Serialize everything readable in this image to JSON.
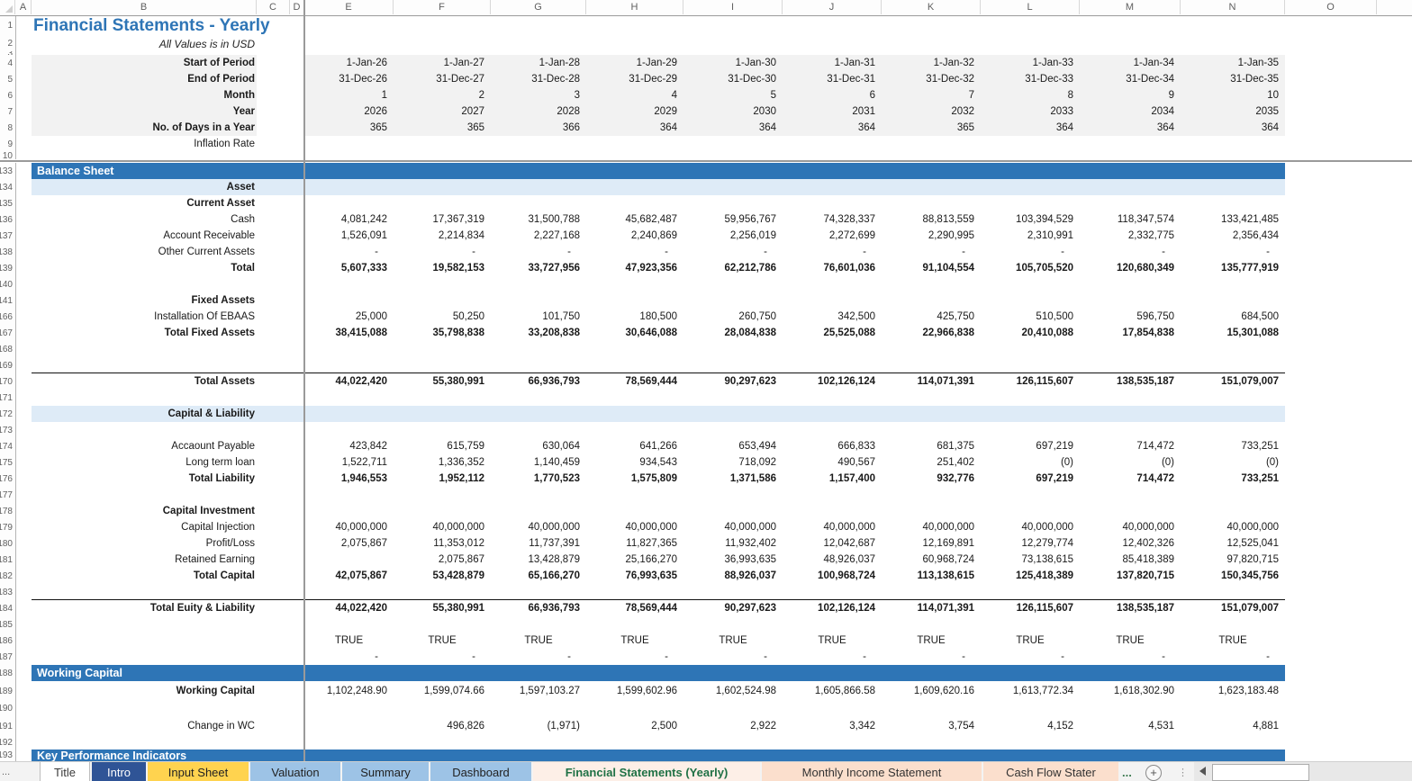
{
  "sheet": {
    "title": "Financial Statements - Yearly",
    "subtitle": "All Values is in USD",
    "column_letters": [
      "A",
      "B",
      "C",
      "D",
      "E",
      "F",
      "G",
      "H",
      "I",
      "J",
      "K",
      "L",
      "M",
      "N",
      "O"
    ],
    "top_rows": [
      {
        "n": "1",
        "type": "title"
      },
      {
        "n": "2",
        "type": "subtitle"
      },
      {
        "n": "3",
        "type": "sliver"
      },
      {
        "n": "4",
        "type": "data",
        "label": "Start of Period",
        "bold": true,
        "fill": true,
        "v": [
          "1-Jan-26",
          "1-Jan-27",
          "1-Jan-28",
          "1-Jan-29",
          "1-Jan-30",
          "1-Jan-31",
          "1-Jan-32",
          "1-Jan-33",
          "1-Jan-34",
          "1-Jan-35"
        ]
      },
      {
        "n": "5",
        "type": "data",
        "label": "End of Period",
        "bold": true,
        "fill": true,
        "v": [
          "31-Dec-26",
          "31-Dec-27",
          "31-Dec-28",
          "31-Dec-29",
          "31-Dec-30",
          "31-Dec-31",
          "31-Dec-32",
          "31-Dec-33",
          "31-Dec-34",
          "31-Dec-35"
        ]
      },
      {
        "n": "6",
        "type": "data",
        "label": "Month",
        "bold": true,
        "fill": true,
        "v": [
          "1",
          "2",
          "3",
          "4",
          "5",
          "6",
          "7",
          "8",
          "9",
          "10"
        ]
      },
      {
        "n": "7",
        "type": "data",
        "label": "Year",
        "bold": true,
        "fill": true,
        "v": [
          "2026",
          "2027",
          "2028",
          "2029",
          "2030",
          "2031",
          "2032",
          "2033",
          "2034",
          "2035"
        ]
      },
      {
        "n": "8",
        "type": "data",
        "label": "No. of Days in a Year",
        "bold": true,
        "fill": true,
        "v": [
          "365",
          "365",
          "366",
          "364",
          "364",
          "364",
          "365",
          "364",
          "364",
          "364"
        ]
      },
      {
        "n": "9",
        "type": "data",
        "label": "Inflation Rate",
        "bold": false,
        "fill": false,
        "v": [
          "",
          "",
          "",
          "",
          "",
          "",
          "",
          "",
          "",
          ""
        ]
      },
      {
        "n": "10",
        "type": "sliver"
      }
    ],
    "body_rows": [
      {
        "n": "133",
        "type": "bar",
        "label": "Balance Sheet"
      },
      {
        "n": "134",
        "type": "sub",
        "label": "Asset"
      },
      {
        "n": "135",
        "type": "lbl",
        "label": "Current Asset"
      },
      {
        "n": "136",
        "type": "data",
        "label": "Cash",
        "v": [
          "4,081,242",
          "17,367,319",
          "31,500,788",
          "45,682,487",
          "59,956,767",
          "74,328,337",
          "88,813,559",
          "103,394,529",
          "118,347,574",
          "133,421,485"
        ]
      },
      {
        "n": "137",
        "type": "data",
        "label": "Account Receivable",
        "v": [
          "1,526,091",
          "2,214,834",
          "2,227,168",
          "2,240,869",
          "2,256,019",
          "2,272,699",
          "2,290,995",
          "2,310,991",
          "2,332,775",
          "2,356,434"
        ]
      },
      {
        "n": "138",
        "type": "data",
        "label": "Other Current Assets",
        "v": [
          "-",
          "-",
          "-",
          "-",
          "-",
          "-",
          "-",
          "-",
          "-",
          "-"
        ]
      },
      {
        "n": "139",
        "type": "data",
        "label": "Total",
        "bold": true,
        "vbold": true,
        "v": [
          "5,607,333",
          "19,582,153",
          "33,727,956",
          "47,923,356",
          "62,212,786",
          "76,601,036",
          "91,104,554",
          "105,705,520",
          "120,680,349",
          "135,777,919"
        ]
      },
      {
        "n": "140",
        "type": "blank"
      },
      {
        "n": "141",
        "type": "lbl",
        "label": "Fixed Assets"
      },
      {
        "n": "166",
        "type": "data",
        "label": "Installation Of EBAAS",
        "v": [
          "25,000",
          "50,250",
          "101,750",
          "180,500",
          "260,750",
          "342,500",
          "425,750",
          "510,500",
          "596,750",
          "684,500"
        ]
      },
      {
        "n": "167",
        "type": "data",
        "label": "Total Fixed Assets",
        "bold": true,
        "vbold": true,
        "v": [
          "38,415,088",
          "35,798,838",
          "33,208,838",
          "30,646,088",
          "28,084,838",
          "25,525,088",
          "22,966,838",
          "20,410,088",
          "17,854,838",
          "15,301,088"
        ]
      },
      {
        "n": "168",
        "type": "blank"
      },
      {
        "n": "169",
        "type": "blank"
      },
      {
        "n": "170",
        "type": "data",
        "label": "Total Assets",
        "bold": true,
        "vbold": true,
        "line": true,
        "v": [
          "44,022,420",
          "55,380,991",
          "66,936,793",
          "78,569,444",
          "90,297,623",
          "102,126,124",
          "114,071,391",
          "126,115,607",
          "138,535,187",
          "151,079,007"
        ]
      },
      {
        "n": "171",
        "type": "blank"
      },
      {
        "n": "172",
        "type": "sub",
        "label": "Capital & Liability"
      },
      {
        "n": "173",
        "type": "blank"
      },
      {
        "n": "174",
        "type": "data",
        "label": "Accaount Payable",
        "v": [
          "423,842",
          "615,759",
          "630,064",
          "641,266",
          "653,494",
          "666,833",
          "681,375",
          "697,219",
          "714,472",
          "733,251"
        ]
      },
      {
        "n": "175",
        "type": "data",
        "label": "Long term loan",
        "v": [
          "1,522,711",
          "1,336,352",
          "1,140,459",
          "934,543",
          "718,092",
          "490,567",
          "251,402",
          "(0)",
          "(0)",
          "(0)"
        ]
      },
      {
        "n": "176",
        "type": "data",
        "label": "Total Liability",
        "bold": true,
        "vbold": true,
        "v": [
          "1,946,553",
          "1,952,112",
          "1,770,523",
          "1,575,809",
          "1,371,586",
          "1,157,400",
          "932,776",
          "697,219",
          "714,472",
          "733,251"
        ]
      },
      {
        "n": "177",
        "type": "blank"
      },
      {
        "n": "178",
        "type": "lbl",
        "label": "Capital Investment"
      },
      {
        "n": "179",
        "type": "data",
        "label": "Capital Injection",
        "v": [
          "40,000,000",
          "40,000,000",
          "40,000,000",
          "40,000,000",
          "40,000,000",
          "40,000,000",
          "40,000,000",
          "40,000,000",
          "40,000,000",
          "40,000,000"
        ]
      },
      {
        "n": "180",
        "type": "data",
        "label": "Profit/Loss",
        "v": [
          "2,075,867",
          "11,353,012",
          "11,737,391",
          "11,827,365",
          "11,932,402",
          "12,042,687",
          "12,169,891",
          "12,279,774",
          "12,402,326",
          "12,525,041"
        ]
      },
      {
        "n": "181",
        "type": "data",
        "label": "Retained Earning",
        "v": [
          "",
          "2,075,867",
          "13,428,879",
          "25,166,270",
          "36,993,635",
          "48,926,037",
          "60,968,724",
          "73,138,615",
          "85,418,389",
          "97,820,715"
        ]
      },
      {
        "n": "182",
        "type": "data",
        "label": "Total Capital",
        "bold": true,
        "vbold": true,
        "v": [
          "42,075,867",
          "53,428,879",
          "65,166,270",
          "76,993,635",
          "88,926,037",
          "100,968,724",
          "113,138,615",
          "125,418,389",
          "137,820,715",
          "150,345,756"
        ]
      },
      {
        "n": "183",
        "type": "blank"
      },
      {
        "n": "184",
        "type": "data",
        "label": "Total Euity & Liability",
        "bold": true,
        "vbold": true,
        "line": true,
        "v": [
          "44,022,420",
          "55,380,991",
          "66,936,793",
          "78,569,444",
          "90,297,623",
          "102,126,124",
          "114,071,391",
          "126,115,607",
          "138,535,187",
          "151,079,007"
        ]
      },
      {
        "n": "185",
        "type": "blank"
      },
      {
        "n": "186",
        "type": "data",
        "label": "",
        "center": true,
        "v": [
          "TRUE",
          "TRUE",
          "TRUE",
          "TRUE",
          "TRUE",
          "TRUE",
          "TRUE",
          "TRUE",
          "TRUE",
          "TRUE"
        ]
      },
      {
        "n": "187",
        "type": "data",
        "label": "",
        "v": [
          "-",
          "-",
          "-",
          "-",
          "-",
          "-",
          "-",
          "-",
          "-",
          "-"
        ]
      },
      {
        "n": "188",
        "type": "bar",
        "label": "Working Capital"
      },
      {
        "n": "189",
        "type": "data",
        "label": "Working Capital",
        "bold": true,
        "v": [
          "1,102,248.90",
          "1,599,074.66",
          "1,597,103.27",
          "1,599,602.96",
          "1,602,524.98",
          "1,605,866.58",
          "1,609,620.16",
          "1,613,772.34",
          "1,618,302.90",
          "1,623,183.48"
        ]
      },
      {
        "n": "190",
        "type": "blank"
      },
      {
        "n": "191",
        "type": "data",
        "label": "Change in WC",
        "v": [
          "",
          "496,826",
          "(1,971)",
          "2,500",
          "2,922",
          "3,342",
          "3,754",
          "4,152",
          "4,531",
          "4,881"
        ]
      },
      {
        "n": "192",
        "type": "blank"
      },
      {
        "n": "193",
        "type": "bar",
        "label": "Key Performance Indicators"
      }
    ]
  },
  "tabbar": {
    "tabs": [
      {
        "label": "Title",
        "style": "plain"
      },
      {
        "label": "Intro",
        "style": "intro"
      },
      {
        "label": "Input Sheet",
        "style": "input"
      },
      {
        "label": "Valuation",
        "style": "blue"
      },
      {
        "label": "Summary",
        "style": "blue"
      },
      {
        "label": "Dashboard",
        "style": "blue"
      },
      {
        "label": "Financial Statements (Yearly)",
        "style": "active"
      },
      {
        "label": "Monthly Income Statement",
        "style": "peach"
      },
      {
        "label": "Cash Flow Stater",
        "style": "peach"
      }
    ],
    "overflow_ellipsis": "...",
    "left_overflow_dots": "...",
    "add_sheet_label": "+",
    "more_dots": "⋮"
  },
  "colors": {
    "title_text": "#2E75B6",
    "section_bar_bg": "#2E75B6",
    "section_bar_text": "#FFFFFF",
    "subsection_bg": "#DEEBF7",
    "header_fill_bg": "#F2F2F2",
    "tab_intro_bg": "#2F5496",
    "tab_input_bg": "#FFD34F",
    "tab_light_blue_bg": "#9DC3E6",
    "tab_peach_bg": "#FBDFCD",
    "tab_active_bg": "#FDEFE7",
    "tab_active_text": "#1F7145"
  }
}
